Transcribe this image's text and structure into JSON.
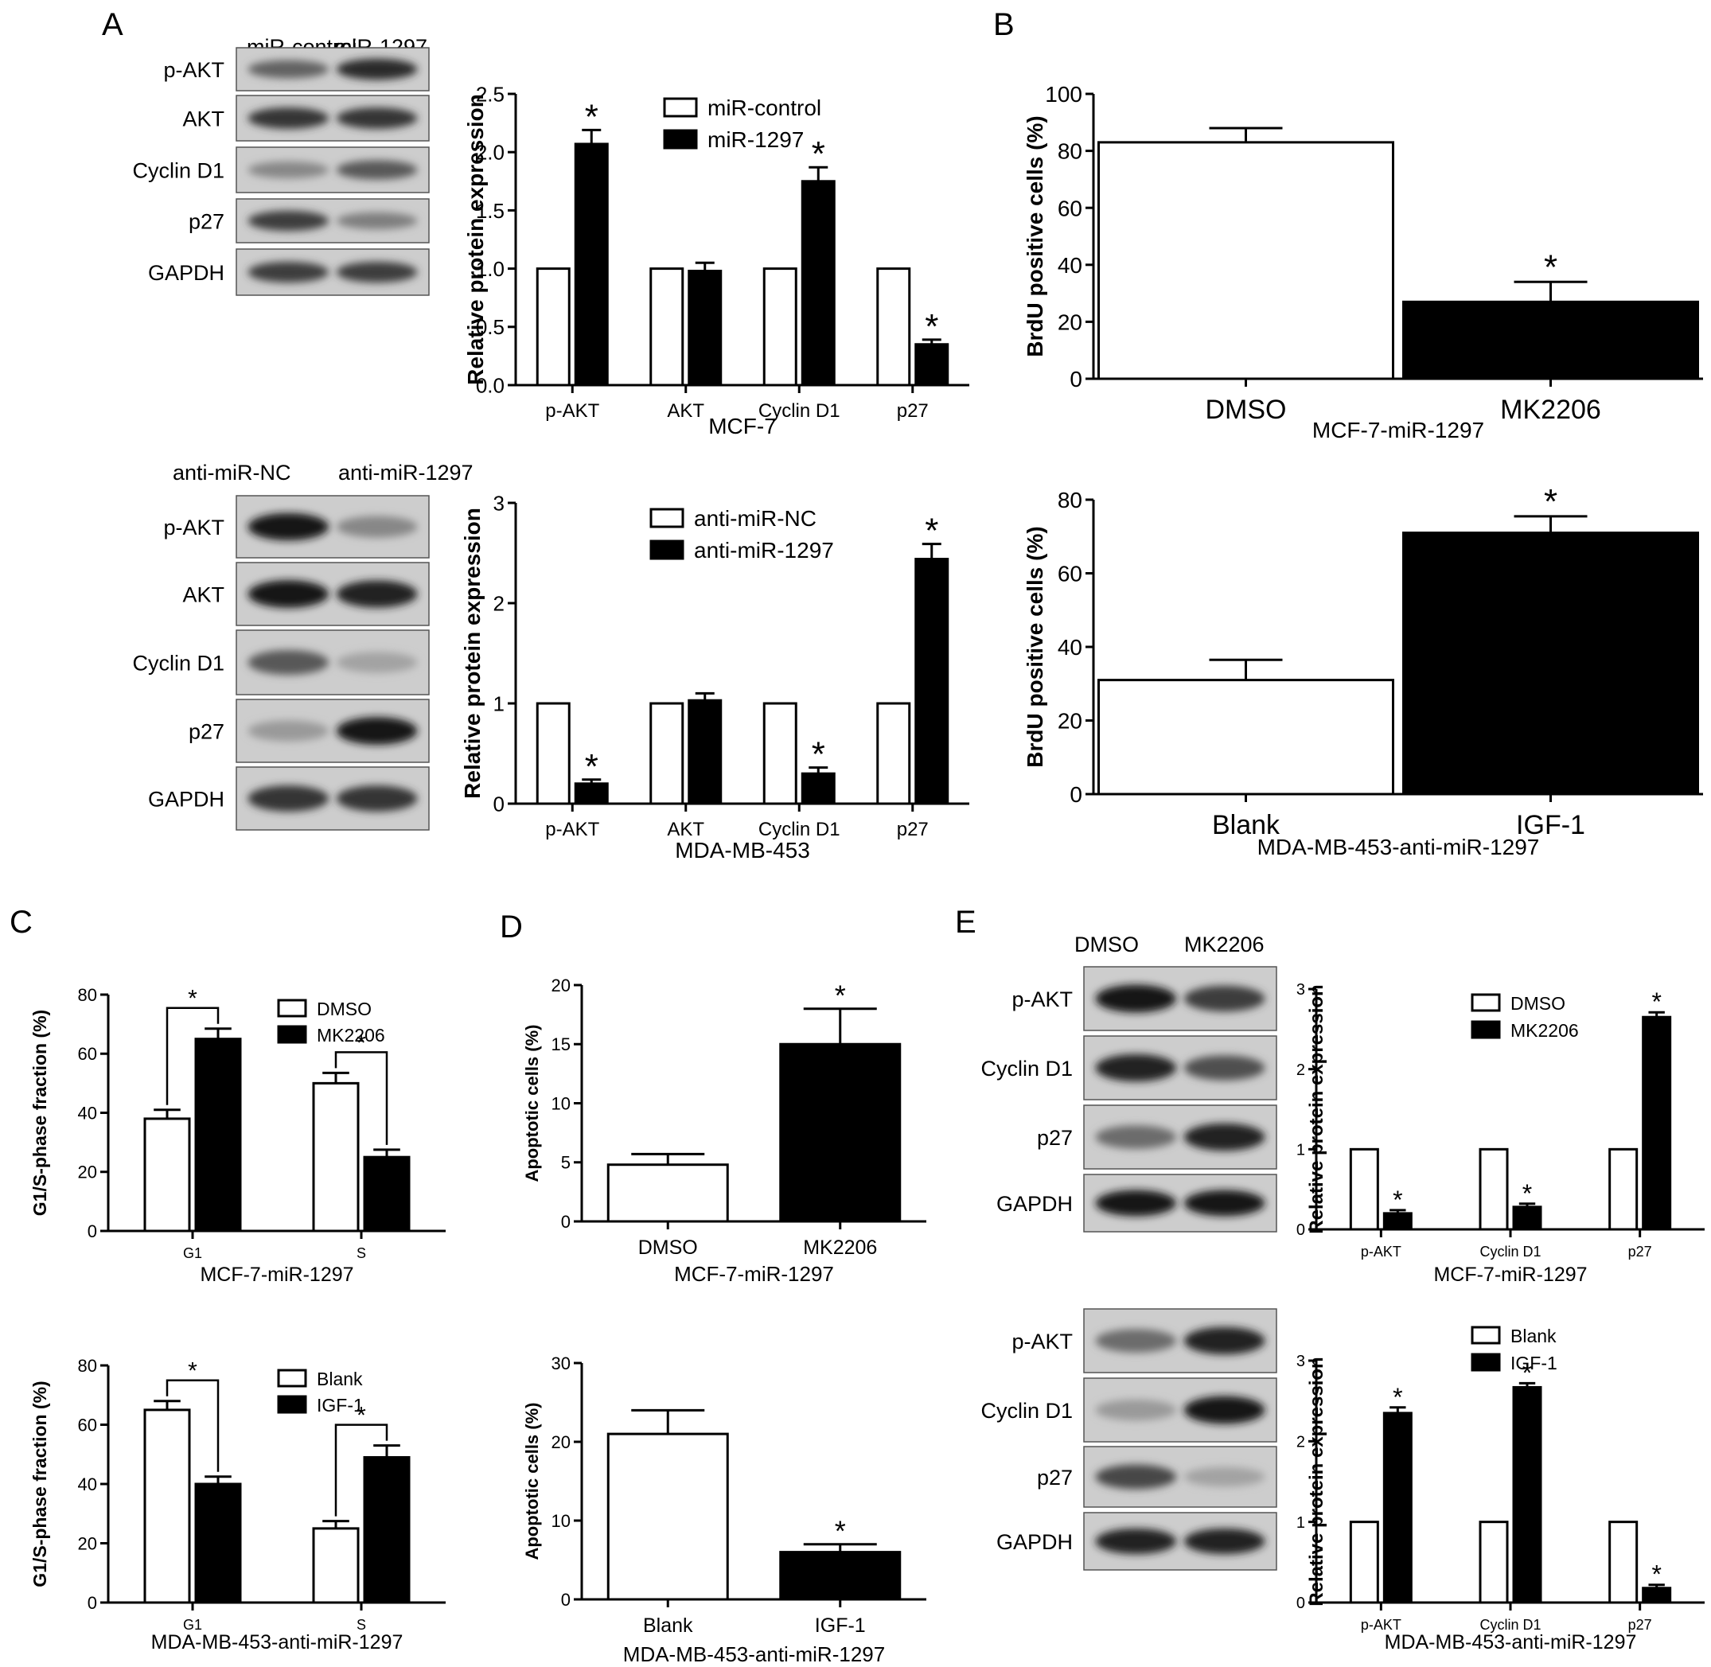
{
  "panels": {
    "A": "A",
    "B": "B",
    "C": "C",
    "D": "D",
    "E": "E"
  },
  "blots": [
    {
      "id": "blotA1",
      "lanes": [
        "miR-control",
        "miR-1297"
      ],
      "rows": [
        "p-AKT",
        "AKT",
        "Cyclin D1",
        "p27",
        "GAPDH"
      ],
      "intensity": [
        [
          0.55,
          0.85
        ],
        [
          0.8,
          0.8
        ],
        [
          0.35,
          0.6
        ],
        [
          0.75,
          0.4
        ],
        [
          0.75,
          0.75
        ]
      ]
    },
    {
      "id": "blotA2",
      "lanes": [
        "anti-miR-NC",
        "anti-miR-1297"
      ],
      "rows": [
        "p-AKT",
        "AKT",
        "Cyclin D1",
        "p27",
        "GAPDH"
      ],
      "intensity": [
        [
          0.95,
          0.35
        ],
        [
          0.95,
          0.9
        ],
        [
          0.6,
          0.2
        ],
        [
          0.25,
          0.95
        ],
        [
          0.8,
          0.8
        ]
      ]
    },
    {
      "id": "blotE1",
      "lanes": [
        "DMSO",
        "MK2206"
      ],
      "rows": [
        "p-AKT",
        "Cyclin D1",
        "p27",
        "GAPDH"
      ],
      "intensity": [
        [
          0.95,
          0.75
        ],
        [
          0.9,
          0.65
        ],
        [
          0.5,
          0.9
        ],
        [
          0.95,
          0.95
        ]
      ]
    },
    {
      "id": "blotE2",
      "lanes": [
        "Blank",
        "IGF-1"
      ],
      "rows": [
        "p-AKT",
        "Cyclin D1",
        "p27",
        "GAPDH"
      ],
      "intensity": [
        [
          0.5,
          0.9
        ],
        [
          0.25,
          0.95
        ],
        [
          0.7,
          0.2
        ],
        [
          0.9,
          0.9
        ]
      ]
    }
  ],
  "chart_data": [
    {
      "id": "A1",
      "type": "bar",
      "categories": [
        "p-AKT",
        "AKT",
        "Cyclin D1",
        "p27"
      ],
      "series": [
        {
          "name": "miR-control",
          "values": [
            1.0,
            1.0,
            1.0,
            1.0
          ],
          "fill": "#ffffff"
        },
        {
          "name": "miR-1297",
          "values": [
            2.07,
            0.98,
            1.75,
            0.35
          ],
          "errors": [
            0.12,
            0.07,
            0.12,
            0.04
          ],
          "fill": "#000000"
        }
      ],
      "asterisks": [
        [
          false,
          true
        ],
        [
          false,
          false
        ],
        [
          false,
          true
        ],
        [
          false,
          true
        ]
      ],
      "ylabel": "Relative protein expression",
      "xlabel": "MCF-7",
      "ylim": [
        0,
        2.5
      ],
      "yticks": [
        "0.0",
        "0.5",
        "1.0",
        "1.5",
        "2.0",
        "2.5"
      ],
      "legend": "top-right"
    },
    {
      "id": "A2",
      "type": "bar",
      "categories": [
        "p-AKT",
        "AKT",
        "Cyclin D1",
        "p27"
      ],
      "series": [
        {
          "name": "anti-miR-NC",
          "values": [
            1.0,
            1.0,
            1.0,
            1.0
          ],
          "fill": "#ffffff"
        },
        {
          "name": "anti-miR-1297",
          "values": [
            0.2,
            1.03,
            0.3,
            2.44
          ],
          "errors": [
            0.04,
            0.07,
            0.06,
            0.15
          ],
          "fill": "#000000"
        }
      ],
      "asterisks": [
        [
          false,
          true
        ],
        [
          false,
          false
        ],
        [
          false,
          true
        ],
        [
          false,
          true
        ]
      ],
      "ylabel": "Relative protein expression",
      "xlabel": "MDA-MB-453",
      "ylim": [
        0,
        3
      ],
      "yticks": [
        "0",
        "1",
        "2",
        "3"
      ],
      "legend": "top-right"
    },
    {
      "id": "B1",
      "type": "bar",
      "categories": [
        "DMSO",
        "MK2206"
      ],
      "values": [
        83,
        27
      ],
      "errors": [
        5,
        7
      ],
      "fills": [
        "#ffffff",
        "#000000"
      ],
      "asterisks": [
        false,
        true
      ],
      "ylabel": "BrdU positive cells (%)",
      "xlabel": "MCF-7-miR-1297",
      "ylim": [
        0,
        100
      ],
      "yticks": [
        "0",
        "20",
        "40",
        "60",
        "80",
        "100"
      ]
    },
    {
      "id": "B2",
      "type": "bar",
      "categories": [
        "Blank",
        "IGF-1"
      ],
      "values": [
        31,
        71
      ],
      "errors": [
        5.5,
        4.5
      ],
      "fills": [
        "#ffffff",
        "#000000"
      ],
      "asterisks": [
        false,
        true
      ],
      "ylabel": "BrdU positive cells (%)",
      "xlabel": "MDA-MB-453-anti-miR-1297",
      "ylim": [
        0,
        80
      ],
      "yticks": [
        "0",
        "20",
        "40",
        "60",
        "80"
      ]
    },
    {
      "id": "C1",
      "type": "bar",
      "categories": [
        "G1",
        "S"
      ],
      "series": [
        {
          "name": "DMSO",
          "values": [
            38,
            50
          ],
          "errors": [
            3,
            3.5
          ],
          "fill": "#ffffff"
        },
        {
          "name": "MK2206",
          "values": [
            65,
            25
          ],
          "errors": [
            3.5,
            2.5
          ],
          "fill": "#000000"
        }
      ],
      "brackets": [
        true,
        true
      ],
      "ylabel": "G1/S-phase fraction (%)",
      "xlabel": "MCF-7-miR-1297",
      "ylim": [
        0,
        80
      ],
      "yticks": [
        "0",
        "20",
        "40",
        "60",
        "80"
      ],
      "legend": "top-right"
    },
    {
      "id": "C2",
      "type": "bar",
      "categories": [
        "G1",
        "S"
      ],
      "series": [
        {
          "name": "Blank",
          "values": [
            65,
            25
          ],
          "errors": [
            3,
            2.5
          ],
          "fill": "#ffffff"
        },
        {
          "name": "IGF-1",
          "values": [
            40,
            49
          ],
          "errors": [
            2.5,
            4
          ],
          "fill": "#000000"
        }
      ],
      "brackets": [
        true,
        true
      ],
      "ylabel": "G1/S-phase fraction (%)",
      "xlabel": "MDA-MB-453-anti-miR-1297",
      "ylim": [
        0,
        80
      ],
      "yticks": [
        "0",
        "20",
        "40",
        "60",
        "80"
      ],
      "legend": "top-right"
    },
    {
      "id": "D1",
      "type": "bar",
      "categories": [
        "DMSO",
        "MK2206"
      ],
      "values": [
        4.8,
        15
      ],
      "errors": [
        0.9,
        3
      ],
      "fills": [
        "#ffffff",
        "#000000"
      ],
      "asterisks": [
        false,
        true
      ],
      "ylabel": "Apoptotic cells (%)",
      "xlabel": "MCF-7-miR-1297",
      "ylim": [
        0,
        20
      ],
      "yticks": [
        "0",
        "5",
        "10",
        "15",
        "20"
      ]
    },
    {
      "id": "D2",
      "type": "bar",
      "categories": [
        "Blank",
        "IGF-1"
      ],
      "values": [
        21,
        6
      ],
      "errors": [
        3,
        1
      ],
      "fills": [
        "#ffffff",
        "#000000"
      ],
      "asterisks": [
        false,
        true
      ],
      "ylabel": "Apoptotic cells (%)",
      "xlabel": "MDA-MB-453-anti-miR-1297",
      "ylim": [
        0,
        30
      ],
      "yticks": [
        "0",
        "10",
        "20",
        "30"
      ]
    },
    {
      "id": "E1",
      "type": "bar",
      "categories": [
        "p-AKT",
        "Cyclin D1",
        "p27"
      ],
      "series": [
        {
          "name": "DMSO",
          "values": [
            1.0,
            1.0,
            1.0
          ],
          "fill": "#ffffff"
        },
        {
          "name": "MK2206",
          "values": [
            0.2,
            0.28,
            2.65
          ],
          "errors": [
            0.04,
            0.04,
            0.06
          ],
          "fill": "#000000"
        }
      ],
      "asterisks": [
        [
          false,
          true
        ],
        [
          false,
          true
        ],
        [
          false,
          true
        ]
      ],
      "ylabel": "Relative protein expression",
      "xlabel": "MCF-7-miR-1297",
      "ylim": [
        0,
        3
      ],
      "yticks": [
        "0",
        "1",
        "2",
        "3"
      ],
      "legend": "top-right"
    },
    {
      "id": "E2",
      "type": "bar",
      "categories": [
        "p-AKT",
        "Cyclin D1",
        "p27"
      ],
      "series": [
        {
          "name": "Blank",
          "values": [
            1.0,
            1.0,
            1.0
          ],
          "fill": "#ffffff"
        },
        {
          "name": "IGF-1",
          "values": [
            2.35,
            2.67,
            0.18
          ],
          "errors": [
            0.07,
            0.05,
            0.04
          ],
          "fill": "#000000"
        }
      ],
      "asterisks": [
        [
          false,
          true
        ],
        [
          false,
          true
        ],
        [
          false,
          true
        ]
      ],
      "ylabel": "Relative protein expression",
      "xlabel": "MDA-MB-453-anti-miR-1297",
      "ylim": [
        0,
        3
      ],
      "yticks": [
        "0",
        "1",
        "2",
        "3"
      ],
      "legend": "top-right"
    }
  ],
  "asterisk_symbol": "*",
  "colors": {
    "fill_dark": "#000000",
    "fill_light": "#ffffff",
    "blot_bg": "#c8c8c8"
  }
}
